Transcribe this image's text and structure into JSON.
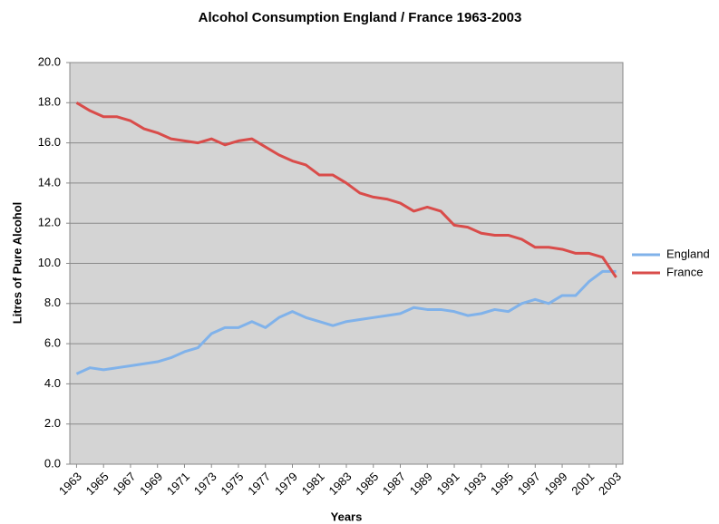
{
  "chart_data": {
    "type": "line",
    "title": "Alcohol Consumption England / France 1963-2003",
    "x_label": "Years",
    "y_label": "Litres of Pure Alcohol",
    "x": [
      1963,
      1964,
      1965,
      1966,
      1967,
      1968,
      1969,
      1970,
      1971,
      1972,
      1973,
      1974,
      1975,
      1976,
      1977,
      1978,
      1979,
      1980,
      1981,
      1982,
      1983,
      1984,
      1985,
      1986,
      1987,
      1988,
      1989,
      1990,
      1991,
      1992,
      1993,
      1994,
      1995,
      1996,
      1997,
      1998,
      1999,
      2000,
      2001,
      2002,
      2003
    ],
    "series": [
      {
        "name": "England",
        "color": "#80b2ea",
        "values": [
          4.5,
          4.8,
          4.7,
          4.8,
          4.9,
          5.0,
          5.1,
          5.3,
          5.6,
          5.8,
          6.5,
          6.8,
          6.8,
          7.1,
          6.8,
          7.3,
          7.6,
          7.3,
          7.1,
          6.9,
          7.1,
          7.2,
          7.3,
          7.4,
          7.5,
          7.8,
          7.7,
          7.7,
          7.6,
          7.4,
          7.5,
          7.7,
          7.6,
          8.0,
          8.2,
          8.0,
          8.4,
          8.4,
          9.1,
          9.6,
          9.6
        ]
      },
      {
        "name": "France",
        "color": "#d94c4a",
        "values": [
          18.0,
          17.6,
          17.3,
          17.3,
          17.1,
          16.7,
          16.5,
          16.2,
          16.1,
          16.0,
          16.2,
          15.9,
          16.1,
          16.2,
          15.8,
          15.4,
          15.1,
          14.9,
          14.4,
          14.4,
          14.0,
          13.5,
          13.3,
          13.2,
          13.0,
          12.6,
          12.8,
          12.6,
          11.9,
          11.8,
          11.5,
          11.4,
          11.4,
          11.2,
          10.8,
          10.8,
          10.7,
          10.5,
          10.5,
          10.3,
          9.3
        ]
      }
    ],
    "xlim": [
      1962.5,
      2003.5
    ],
    "xticks": [
      1963,
      1965,
      1967,
      1969,
      1971,
      1973,
      1975,
      1977,
      1979,
      1981,
      1983,
      1985,
      1987,
      1989,
      1991,
      1993,
      1995,
      1997,
      1999,
      2001,
      2003
    ],
    "ylim": [
      0,
      20
    ],
    "yticks": [
      {
        "value": 0,
        "label": "0.0"
      },
      {
        "value": 2,
        "label": "2.0"
      },
      {
        "value": 4,
        "label": "4.0"
      },
      {
        "value": 6,
        "label": "6.0"
      },
      {
        "value": 8,
        "label": "8.0"
      },
      {
        "value": 10,
        "label": "10.0"
      },
      {
        "value": 12,
        "label": "12.0"
      },
      {
        "value": 14,
        "label": "14.0"
      },
      {
        "value": 16,
        "label": "16.0"
      },
      {
        "value": 18,
        "label": "18.0"
      },
      {
        "value": 20,
        "label": "20.0"
      }
    ],
    "grid": true,
    "legend": "right"
  }
}
